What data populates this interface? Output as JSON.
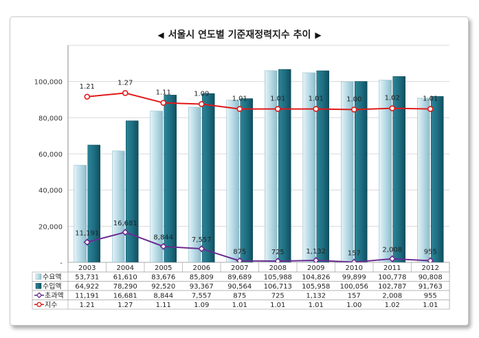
{
  "chart_data": {
    "type": "bar",
    "title": "서울시 연도별 기준재정력지수 추이",
    "categories": [
      "2003",
      "2004",
      "2005",
      "2006",
      "2007",
      "2008",
      "2009",
      "2010",
      "2011",
      "2012"
    ],
    "ylim": [
      0,
      120000
    ],
    "yticks": [
      0,
      20000,
      40000,
      60000,
      80000,
      100000
    ],
    "ytick_labels": [
      "-",
      "20,000",
      "40,000",
      "60,000",
      "80,000",
      "100,000"
    ],
    "grid": true,
    "series": [
      {
        "name": "수요액",
        "type": "bar",
        "color": "#a9d0dc",
        "values": [
          53731,
          61610,
          83676,
          85809,
          89689,
          105988,
          104826,
          99899,
          100778,
          90808
        ],
        "labels": [
          "53,731",
          "61,610",
          "83,676",
          "85,809",
          "89,689",
          "105,988",
          "104,826",
          "99,899",
          "100,778",
          "90,808"
        ]
      },
      {
        "name": "수입액",
        "type": "bar",
        "color": "#1f6f82",
        "values": [
          64922,
          78290,
          92520,
          93367,
          90564,
          106713,
          105958,
          100056,
          102787,
          91763
        ],
        "labels": [
          "64,922",
          "78,290",
          "92,520",
          "93,367",
          "90,564",
          "106,713",
          "105,958",
          "100,056",
          "102,787",
          "91,763"
        ]
      },
      {
        "name": "초과액",
        "type": "line",
        "color": "#6a2c91",
        "values": [
          11191,
          16681,
          8844,
          7557,
          875,
          725,
          1132,
          157,
          2008,
          955
        ],
        "labels": [
          "11,191",
          "16,681",
          "8,844",
          "7,557",
          "875",
          "725",
          "1,132",
          "157",
          "2,008",
          "955"
        ]
      },
      {
        "name": "지수",
        "type": "line",
        "color": "#e01919",
        "axis": "secondary",
        "values": [
          1.21,
          1.27,
          1.11,
          1.09,
          1.01,
          1.01,
          1.01,
          1.0,
          1.02,
          1.01
        ],
        "labels": [
          "1.21",
          "1.27",
          "1.11",
          "1.09",
          "1.01",
          "1.01",
          "1.01",
          "1.00",
          "1.02",
          "1.01"
        ]
      }
    ]
  }
}
